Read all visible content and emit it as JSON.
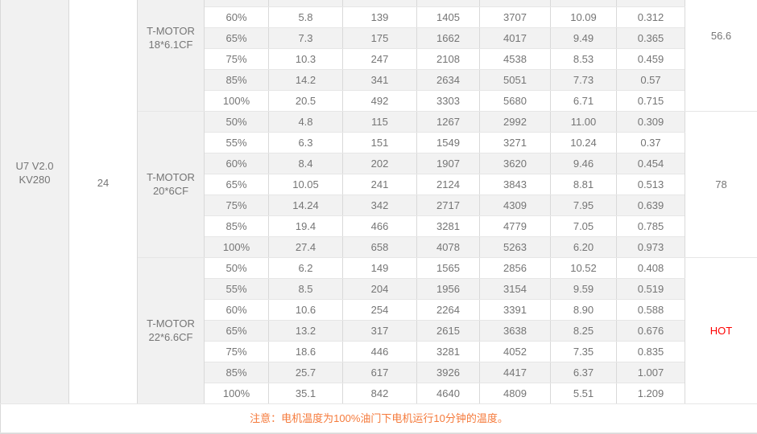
{
  "table": {
    "motor": "U7 V2.0\nKV280",
    "voltage": "24",
    "blocks": [
      {
        "prop": "T-MOTOR\n18*6.1CF",
        "temp": "56.6",
        "temp_hot": false,
        "rows": [
          [
            "60%",
            "5.8",
            "139",
            "1405",
            "3707",
            "10.09",
            "0.312"
          ],
          [
            "65%",
            "7.3",
            "175",
            "1662",
            "4017",
            "9.49",
            "0.365"
          ],
          [
            "75%",
            "10.3",
            "247",
            "2108",
            "4538",
            "8.53",
            "0.459"
          ],
          [
            "85%",
            "14.2",
            "341",
            "2634",
            "5051",
            "7.73",
            "0.57"
          ],
          [
            "100%",
            "20.5",
            "492",
            "3303",
            "5680",
            "6.71",
            "0.715"
          ]
        ]
      },
      {
        "prop": "T-MOTOR\n20*6CF",
        "temp": "78",
        "temp_hot": false,
        "rows": [
          [
            "50%",
            "4.8",
            "115",
            "1267",
            "2992",
            "11.00",
            "0.309"
          ],
          [
            "55%",
            "6.3",
            "151",
            "1549",
            "3271",
            "10.24",
            "0.37"
          ],
          [
            "60%",
            "8.4",
            "202",
            "1907",
            "3620",
            "9.46",
            "0.454"
          ],
          [
            "65%",
            "10.05",
            "241",
            "2124",
            "3843",
            "8.81",
            "0.513"
          ],
          [
            "75%",
            "14.24",
            "342",
            "2717",
            "4309",
            "7.95",
            "0.639"
          ],
          [
            "85%",
            "19.4",
            "466",
            "3281",
            "4779",
            "7.05",
            "0.785"
          ],
          [
            "100%",
            "27.4",
            "658",
            "4078",
            "5263",
            "6.20",
            "0.973"
          ]
        ]
      },
      {
        "prop": "T-MOTOR\n22*6.6CF",
        "temp": "HOT",
        "temp_hot": true,
        "rows": [
          [
            "50%",
            "6.2",
            "149",
            "1565",
            "2856",
            "10.52",
            "0.408"
          ],
          [
            "55%",
            "8.5",
            "204",
            "1956",
            "3154",
            "9.59",
            "0.519"
          ],
          [
            "60%",
            "10.6",
            "254",
            "2264",
            "3391",
            "8.90",
            "0.588"
          ],
          [
            "65%",
            "13.2",
            "317",
            "2615",
            "3638",
            "8.25",
            "0.676"
          ],
          [
            "75%",
            "18.6",
            "446",
            "3281",
            "4052",
            "7.35",
            "0.835"
          ],
          [
            "85%",
            "25.7",
            "617",
            "3926",
            "4417",
            "6.37",
            "1.007"
          ],
          [
            "100%",
            "35.1",
            "842",
            "4640",
            "4809",
            "5.51",
            "1.209"
          ]
        ]
      }
    ],
    "note": "注意：电机温度为100%油门下电机运行10分钟的温度。"
  },
  "colors": {
    "note_orange": "#f57a3b",
    "hot_red": "#fe0000",
    "stripe_gray": "#f2f2f2",
    "border": "#d9d9d9"
  }
}
